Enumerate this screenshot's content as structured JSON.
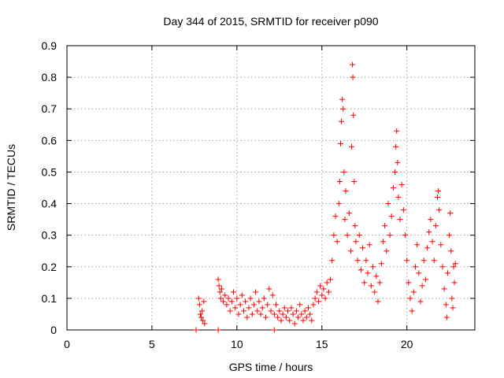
{
  "chart_data": {
    "type": "scatter",
    "title": "Day 344 of 2015, SRMTID for receiver p090",
    "xlabel": "GPS time / hours",
    "ylabel": "SRMTID / TECUs",
    "xlim": [
      0,
      24
    ],
    "ylim": [
      0,
      0.9
    ],
    "x_ticks": [
      0,
      5,
      10,
      15,
      20
    ],
    "x_tick_labels": [
      "0",
      "5",
      "10",
      "15",
      "20"
    ],
    "y_ticks": [
      0,
      0.1,
      0.2,
      0.3,
      0.4,
      0.5,
      0.6,
      0.7,
      0.8,
      0.9
    ],
    "y_tick_labels": [
      "0",
      "0.1",
      "0.2",
      "0.3",
      "0.4",
      "0.5",
      "0.6",
      "0.7",
      "0.8",
      "0.9"
    ],
    "grid": true,
    "marker": "+",
    "color": "#ff0000",
    "series": [
      {
        "name": "p090",
        "points": [
          [
            7.6,
            0.0
          ],
          [
            8.9,
            0.0
          ],
          [
            12.2,
            0.0
          ],
          [
            7.75,
            0.1
          ],
          [
            7.8,
            0.08
          ],
          [
            7.85,
            0.05
          ],
          [
            7.9,
            0.04
          ],
          [
            7.95,
            0.06
          ],
          [
            8.0,
            0.03
          ],
          [
            8.05,
            0.09
          ],
          [
            8.1,
            0.02
          ],
          [
            8.9,
            0.16
          ],
          [
            8.95,
            0.14
          ],
          [
            9.0,
            0.12
          ],
          [
            9.05,
            0.1
          ],
          [
            9.1,
            0.13
          ],
          [
            9.2,
            0.09
          ],
          [
            9.3,
            0.11
          ],
          [
            9.4,
            0.08
          ],
          [
            9.5,
            0.1
          ],
          [
            9.6,
            0.06
          ],
          [
            9.7,
            0.09
          ],
          [
            9.8,
            0.12
          ],
          [
            9.9,
            0.07
          ],
          [
            10.0,
            0.1
          ],
          [
            10.1,
            0.05
          ],
          [
            10.2,
            0.08
          ],
          [
            10.3,
            0.11
          ],
          [
            10.4,
            0.06
          ],
          [
            10.5,
            0.09
          ],
          [
            10.6,
            0.04
          ],
          [
            10.7,
            0.07
          ],
          [
            10.8,
            0.1
          ],
          [
            10.9,
            0.05
          ],
          [
            11.0,
            0.08
          ],
          [
            11.1,
            0.12
          ],
          [
            11.2,
            0.06
          ],
          [
            11.3,
            0.09
          ],
          [
            11.4,
            0.05
          ],
          [
            11.5,
            0.07
          ],
          [
            11.6,
            0.1
          ],
          [
            11.7,
            0.04
          ],
          [
            11.8,
            0.08
          ],
          [
            11.9,
            0.13
          ],
          [
            12.0,
            0.06
          ],
          [
            12.1,
            0.11
          ],
          [
            12.2,
            0.05
          ],
          [
            12.3,
            0.08
          ],
          [
            12.4,
            0.04
          ],
          [
            12.5,
            0.06
          ],
          [
            12.6,
            0.03
          ],
          [
            12.7,
            0.05
          ],
          [
            12.8,
            0.07
          ],
          [
            12.9,
            0.04
          ],
          [
            13.0,
            0.06
          ],
          [
            13.1,
            0.03
          ],
          [
            13.2,
            0.07
          ],
          [
            13.3,
            0.05
          ],
          [
            13.4,
            0.02
          ],
          [
            13.5,
            0.06
          ],
          [
            13.6,
            0.04
          ],
          [
            13.7,
            0.08
          ],
          [
            13.8,
            0.05
          ],
          [
            13.9,
            0.03
          ],
          [
            14.0,
            0.06
          ],
          [
            14.1,
            0.04
          ],
          [
            14.2,
            0.07
          ],
          [
            14.3,
            0.05
          ],
          [
            14.4,
            0.03
          ],
          [
            14.5,
            0.08
          ],
          [
            14.6,
            0.1
          ],
          [
            14.7,
            0.12
          ],
          [
            14.8,
            0.09
          ],
          [
            14.9,
            0.14
          ],
          [
            15.0,
            0.11
          ],
          [
            15.1,
            0.13
          ],
          [
            15.2,
            0.1
          ],
          [
            15.3,
            0.15
          ],
          [
            15.4,
            0.12
          ],
          [
            15.5,
            0.16
          ],
          [
            15.6,
            0.22
          ],
          [
            15.7,
            0.3
          ],
          [
            15.8,
            0.36
          ],
          [
            15.9,
            0.28
          ],
          [
            16.0,
            0.4
          ],
          [
            16.05,
            0.47
          ],
          [
            16.1,
            0.59
          ],
          [
            16.15,
            0.66
          ],
          [
            16.2,
            0.73
          ],
          [
            16.25,
            0.7
          ],
          [
            16.3,
            0.5
          ],
          [
            16.35,
            0.35
          ],
          [
            16.4,
            0.44
          ],
          [
            16.5,
            0.3
          ],
          [
            16.6,
            0.37
          ],
          [
            16.7,
            0.25
          ],
          [
            16.75,
            0.58
          ],
          [
            16.8,
            0.84
          ],
          [
            16.82,
            0.8
          ],
          [
            16.85,
            0.68
          ],
          [
            16.9,
            0.47
          ],
          [
            16.95,
            0.33
          ],
          [
            17.0,
            0.28
          ],
          [
            17.1,
            0.22
          ],
          [
            17.2,
            0.3
          ],
          [
            17.3,
            0.19
          ],
          [
            17.4,
            0.26
          ],
          [
            17.5,
            0.15
          ],
          [
            17.6,
            0.22
          ],
          [
            17.7,
            0.18
          ],
          [
            17.8,
            0.27
          ],
          [
            17.9,
            0.14
          ],
          [
            18.0,
            0.2
          ],
          [
            18.1,
            0.12
          ],
          [
            18.2,
            0.17
          ],
          [
            18.3,
            0.09
          ],
          [
            18.4,
            0.15
          ],
          [
            18.5,
            0.21
          ],
          [
            18.6,
            0.28
          ],
          [
            18.7,
            0.33
          ],
          [
            18.8,
            0.25
          ],
          [
            18.9,
            0.4
          ],
          [
            19.0,
            0.3
          ],
          [
            19.1,
            0.36
          ],
          [
            19.2,
            0.45
          ],
          [
            19.3,
            0.5
          ],
          [
            19.35,
            0.58
          ],
          [
            19.4,
            0.63
          ],
          [
            19.45,
            0.53
          ],
          [
            19.5,
            0.42
          ],
          [
            19.6,
            0.35
          ],
          [
            19.7,
            0.46
          ],
          [
            19.8,
            0.38
          ],
          [
            19.9,
            0.3
          ],
          [
            20.0,
            0.22
          ],
          [
            20.1,
            0.15
          ],
          [
            20.2,
            0.1
          ],
          [
            20.3,
            0.06
          ],
          [
            20.4,
            0.12
          ],
          [
            20.5,
            0.2
          ],
          [
            20.6,
            0.27
          ],
          [
            20.7,
            0.18
          ],
          [
            20.8,
            0.09
          ],
          [
            20.9,
            0.14
          ],
          [
            21.0,
            0.22
          ],
          [
            21.1,
            0.16
          ],
          [
            21.2,
            0.26
          ],
          [
            21.3,
            0.31
          ],
          [
            21.4,
            0.35
          ],
          [
            21.5,
            0.28
          ],
          [
            21.6,
            0.22
          ],
          [
            21.7,
            0.33
          ],
          [
            21.8,
            0.42
          ],
          [
            21.85,
            0.44
          ],
          [
            21.9,
            0.38
          ],
          [
            22.0,
            0.27
          ],
          [
            22.1,
            0.2
          ],
          [
            22.2,
            0.13
          ],
          [
            22.3,
            0.08
          ],
          [
            22.35,
            0.04
          ],
          [
            22.4,
            0.18
          ],
          [
            22.5,
            0.3
          ],
          [
            22.55,
            0.37
          ],
          [
            22.6,
            0.25
          ],
          [
            22.65,
            0.1
          ],
          [
            22.7,
            0.07
          ],
          [
            22.75,
            0.2
          ],
          [
            22.8,
            0.15
          ],
          [
            22.85,
            0.21
          ]
        ]
      }
    ]
  }
}
